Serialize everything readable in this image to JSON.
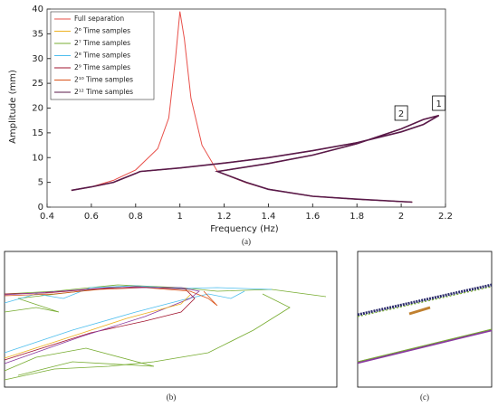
{
  "chart_data": {
    "type": "line",
    "xlabel": "Frequency (Hz)",
    "ylabel": "Amplitude (mm)",
    "xlim": [
      0.4,
      2.2
    ],
    "xticks": [
      0.4,
      0.6,
      0.8,
      1,
      1.2,
      1.4,
      1.6,
      1.8,
      2,
      2.2
    ],
    "ylim": [
      0,
      40
    ],
    "yticks": [
      0,
      5,
      10,
      15,
      20,
      25,
      30,
      35,
      40
    ],
    "x": [
      0.51,
      0.6,
      0.7,
      0.8,
      0.82,
      1.0,
      1.2,
      1.4,
      1.6,
      1.8,
      2.0,
      2.1,
      2.17,
      2.1,
      2.0,
      1.8,
      1.6,
      1.4,
      1.2,
      1.17,
      1.3,
      1.4,
      1.6,
      1.8,
      2.05
    ],
    "series": [
      {
        "name": "Full separation",
        "color": "#e8504a",
        "x": [
          0.51,
          0.6,
          0.7,
          0.8,
          0.9,
          0.95,
          0.98,
          1.0,
          1.02,
          1.05,
          1.1,
          1.17,
          1.3,
          1.4,
          1.6,
          1.8,
          2.05
        ],
        "values": [
          3.4,
          4.1,
          5.4,
          7.5,
          11.8,
          18,
          30,
          39.5,
          34,
          22,
          12.5,
          7.2,
          4.9,
          3.6,
          2.2,
          1.6,
          1.0
        ]
      },
      {
        "name": "2⁶ Time samples",
        "color": "#edb120",
        "values": [
          3.4,
          4.1,
          5.0,
          6.8,
          7.2,
          7.9,
          8.9,
          10.0,
          11.4,
          13.0,
          15.2,
          16.7,
          18.5,
          17.7,
          15.8,
          12.8,
          10.5,
          8.8,
          7.4,
          7.2,
          5.0,
          3.6,
          2.2,
          1.6,
          1.0
        ]
      },
      {
        "name": "2⁷ Time samples",
        "color": "#77ac30",
        "values": [
          3.4,
          4.1,
          5.0,
          6.8,
          7.2,
          7.9,
          8.9,
          10.0,
          11.4,
          13.0,
          15.2,
          16.7,
          18.5,
          17.7,
          15.8,
          12.8,
          10.5,
          8.8,
          7.4,
          7.2,
          5.0,
          3.6,
          2.2,
          1.6,
          1.0
        ]
      },
      {
        "name": "2⁸ Time samples",
        "color": "#4dbeee",
        "values": [
          3.4,
          4.1,
          5.0,
          6.8,
          7.2,
          7.9,
          8.9,
          10.0,
          11.4,
          13.0,
          15.2,
          16.7,
          18.5,
          17.7,
          15.8,
          12.8,
          10.5,
          8.8,
          7.4,
          7.2,
          5.0,
          3.6,
          2.2,
          1.6,
          1.0
        ]
      },
      {
        "name": "2⁹ Time samples",
        "color": "#a2142f",
        "values": [
          3.4,
          4.1,
          5.0,
          6.8,
          7.2,
          7.9,
          8.9,
          10.0,
          11.4,
          13.0,
          15.2,
          16.7,
          18.5,
          17.7,
          15.8,
          12.8,
          10.5,
          8.8,
          7.4,
          7.2,
          5.0,
          3.6,
          2.2,
          1.6,
          1.0
        ]
      },
      {
        "name": "2¹⁰ Time samples",
        "color": "#d95319",
        "values": [
          3.4,
          4.1,
          5.0,
          6.8,
          7.2,
          7.9,
          8.9,
          10.0,
          11.4,
          13.0,
          15.2,
          16.7,
          18.5,
          17.7,
          15.8,
          12.8,
          10.5,
          8.8,
          7.4,
          7.2,
          5.0,
          3.6,
          2.2,
          1.6,
          1.0
        ]
      },
      {
        "name": "2¹² Time samples",
        "color": "#5a1a4a",
        "values": [
          3.4,
          4.1,
          5.0,
          6.8,
          7.2,
          7.9,
          8.9,
          10.0,
          11.4,
          13.0,
          15.2,
          16.7,
          18.5,
          17.7,
          15.8,
          12.8,
          10.5,
          8.8,
          7.4,
          7.2,
          5.0,
          3.6,
          2.2,
          1.6,
          1.0
        ]
      }
    ],
    "annotations": [
      {
        "text": "1",
        "x": 2.17,
        "y": 21
      },
      {
        "text": "2",
        "x": 2.0,
        "y": 19
      }
    ],
    "captions": [
      "(a)",
      "(b)",
      "(c)"
    ]
  }
}
